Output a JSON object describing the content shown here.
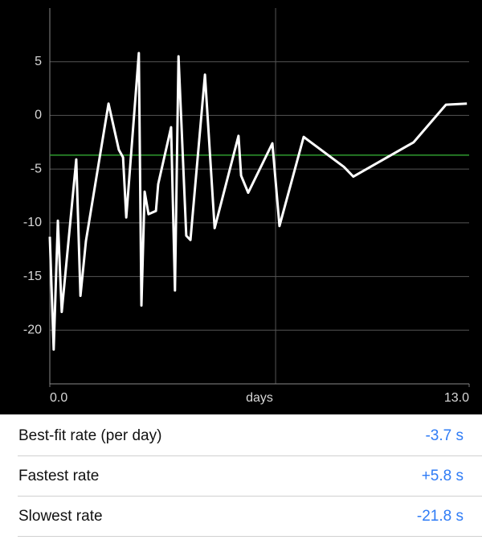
{
  "chart_data": {
    "type": "line",
    "x": [
      0,
      0.12,
      0.25,
      0.37,
      0.82,
      0.95,
      1.12,
      1.82,
      2.14,
      2.27,
      2.37,
      2.76,
      2.84,
      2.94,
      3.06,
      3.29,
      3.36,
      3.76,
      3.88,
      3.99,
      4.23,
      4.36,
      4.81,
      5.11,
      5.85,
      5.93,
      6.15,
      6.9,
      7.12,
      7.87,
      9.12,
      9.41,
      11.28,
      12.28,
      12.93
    ],
    "values": [
      -11.3,
      -21.8,
      -9.8,
      -18.3,
      -4.1,
      -16.8,
      -11.7,
      1.1,
      -3.2,
      -3.9,
      -9.5,
      5.8,
      -17.7,
      -7.1,
      -9.2,
      -8.9,
      -6.4,
      -1.1,
      -16.3,
      5.5,
      -11.2,
      -11.6,
      3.8,
      -10.5,
      -1.9,
      -5.6,
      -7.2,
      -2.6,
      -10.3,
      -2.0,
      -4.8,
      -5.7,
      -2.5,
      1.0,
      1.1
    ],
    "color": "#ffffff",
    "fit_value": -3.7,
    "fit_color": "#2e9a2e",
    "xlabel": "days",
    "xlim": [
      0,
      13
    ],
    "xticks": [
      {
        "value": 0,
        "label": "0.0"
      },
      {
        "value": 13,
        "label": "13.0"
      }
    ],
    "x_grid_lines": [
      7
    ],
    "ylim": [
      -25,
      10
    ],
    "yticks": [
      -20,
      -15,
      -10,
      -5,
      0,
      5
    ],
    "grid": true
  },
  "stats": [
    {
      "label": "Best-fit rate (per day)",
      "value": "-3.7 s"
    },
    {
      "label": "Fastest rate",
      "value": "+5.8 s"
    },
    {
      "label": "Slowest rate",
      "value": "-21.8 s"
    }
  ]
}
